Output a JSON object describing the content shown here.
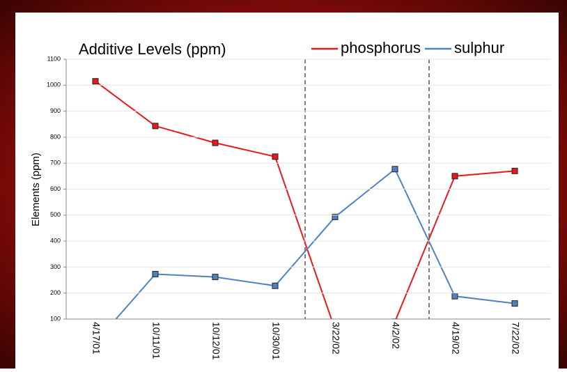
{
  "chart_data": {
    "type": "line",
    "title": "Additive Levels (ppm)",
    "y_label": "Elements (ppm)",
    "categories": [
      "4/17/01",
      "10/11/01",
      "10/12/01",
      "10/30/01",
      "3/22/02",
      "4/2/02",
      "4/19/02",
      "7/22/02"
    ],
    "series": [
      {
        "name": "phosphorus",
        "color": "#e8191c",
        "values": [
          1015,
          843,
          778,
          725,
          60,
          90,
          650,
          670
        ]
      },
      {
        "name": "sulphur",
        "color": "#4f81bd",
        "values": [
          10,
          273,
          262,
          228,
          493,
          677,
          188,
          160
        ]
      }
    ],
    "ylim": [
      100,
      1100
    ],
    "yticks": [
      100,
      200,
      300,
      400,
      500,
      600,
      700,
      800,
      900,
      1000,
      1100
    ],
    "grid": true,
    "legend": "top-right"
  }
}
